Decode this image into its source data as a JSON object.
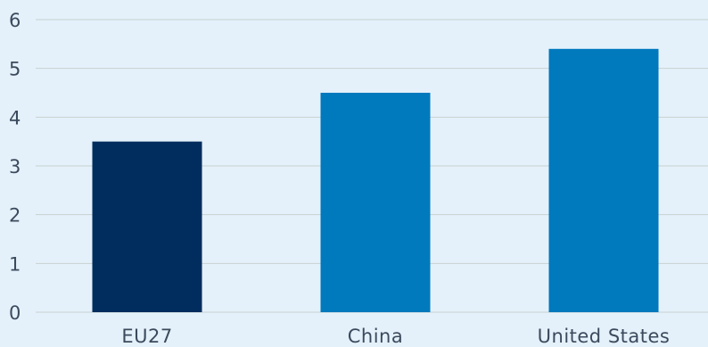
{
  "chart_data": {
    "type": "bar",
    "title": "",
    "xlabel": "",
    "ylabel": "",
    "categories": [
      "EU27",
      "China",
      "United States"
    ],
    "values": [
      3.5,
      4.5,
      5.4
    ],
    "bar_colors": [
      "#002d5e",
      "#0079bd",
      "#0079bd"
    ],
    "ylim": [
      0,
      6
    ],
    "yticks": [
      "0",
      "1",
      "2",
      "3",
      "4",
      "5",
      "6"
    ],
    "grid": true,
    "legend": "none",
    "background": "#e4f1fb",
    "grid_color": "#c9d1cf"
  }
}
